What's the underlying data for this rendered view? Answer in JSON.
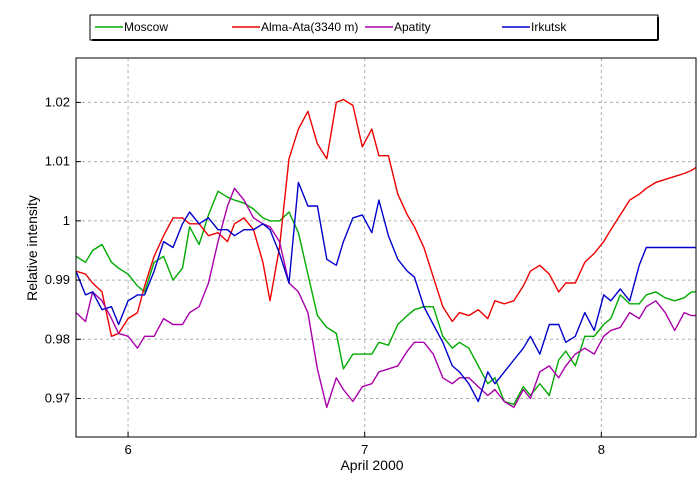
{
  "chart_data": {
    "type": "line",
    "title": "",
    "xlabel": "April 2000",
    "ylabel": "Relative intensity",
    "xlim": [
      5.78,
      8.4
    ],
    "ylim": [
      0.9635,
      1.0275
    ],
    "xticks": [
      6,
      7,
      8
    ],
    "xtick_labels": [
      "6",
      "7",
      "8"
    ],
    "yticks": [
      0.97,
      0.98,
      0.99,
      1.0,
      1.01,
      1.02
    ],
    "ytick_labels": [
      "0.97",
      "0.98",
      "0.99",
      "1",
      "1.01",
      "1.02"
    ],
    "grid": true,
    "legend_position": "top",
    "series": [
      {
        "name": "Moscow",
        "color": "#00aa00",
        "x": [
          5.78,
          5.82,
          5.85,
          5.89,
          5.93,
          5.96,
          6.0,
          6.04,
          6.07,
          6.11,
          6.15,
          6.19,
          6.23,
          6.26,
          6.3,
          6.34,
          6.38,
          6.42,
          6.45,
          6.49,
          6.53,
          6.57,
          6.6,
          6.64,
          6.68,
          6.72,
          6.76,
          6.8,
          6.84,
          6.88,
          6.91,
          6.95,
          6.99,
          7.03,
          7.06,
          7.1,
          7.14,
          7.18,
          7.21,
          7.25,
          7.29,
          7.33,
          7.37,
          7.4,
          7.44,
          7.48,
          7.52,
          7.55,
          7.59,
          7.63,
          7.67,
          7.7,
          7.74,
          7.78,
          7.82,
          7.85,
          7.89,
          7.93,
          7.97,
          8.01,
          8.04,
          8.08,
          8.12,
          8.16,
          8.19,
          8.23,
          8.27,
          8.31,
          8.35,
          8.38,
          8.4
        ],
        "y": [
          0.994,
          0.993,
          0.995,
          0.996,
          0.993,
          0.992,
          0.991,
          0.989,
          0.988,
          0.993,
          0.994,
          0.99,
          0.992,
          0.999,
          0.996,
          1.001,
          1.005,
          1.004,
          1.0035,
          1.003,
          1.002,
          1.0005,
          1.0,
          1.0,
          1.0015,
          0.998,
          0.991,
          0.984,
          0.982,
          0.981,
          0.975,
          0.9775,
          0.9775,
          0.9775,
          0.9795,
          0.979,
          0.9825,
          0.984,
          0.985,
          0.9855,
          0.9855,
          0.9805,
          0.9785,
          0.9795,
          0.9785,
          0.9755,
          0.9725,
          0.9735,
          0.9695,
          0.969,
          0.972,
          0.9705,
          0.9725,
          0.9705,
          0.9765,
          0.978,
          0.9755,
          0.9805,
          0.9805,
          0.9825,
          0.9835,
          0.9875,
          0.986,
          0.986,
          0.9875,
          0.988,
          0.987,
          0.9865,
          0.987,
          0.988,
          0.988
        ]
      },
      {
        "name": "Alma-Ata(3340 m)",
        "color": "#ee0000",
        "x": [
          5.78,
          5.82,
          5.85,
          5.89,
          5.93,
          5.96,
          6.0,
          6.04,
          6.07,
          6.11,
          6.15,
          6.19,
          6.23,
          6.26,
          6.3,
          6.34,
          6.38,
          6.42,
          6.45,
          6.49,
          6.53,
          6.57,
          6.6,
          6.64,
          6.68,
          6.72,
          6.76,
          6.8,
          6.84,
          6.88,
          6.91,
          6.95,
          6.99,
          7.03,
          7.06,
          7.1,
          7.14,
          7.18,
          7.21,
          7.25,
          7.29,
          7.33,
          7.37,
          7.4,
          7.44,
          7.48,
          7.52,
          7.55,
          7.59,
          7.63,
          7.67,
          7.7,
          7.74,
          7.78,
          7.82,
          7.85,
          7.89,
          7.93,
          7.97,
          8.01,
          8.04,
          8.08,
          8.12,
          8.16,
          8.19,
          8.23,
          8.27,
          8.31,
          8.35,
          8.38,
          8.4
        ],
        "y": [
          0.9915,
          0.991,
          0.9895,
          0.988,
          0.9805,
          0.981,
          0.9835,
          0.9845,
          0.989,
          0.994,
          0.9975,
          1.0005,
          1.0005,
          0.9995,
          0.9995,
          0.9975,
          0.998,
          0.9965,
          0.9995,
          1.0005,
          0.9985,
          0.993,
          0.9865,
          0.9955,
          1.0105,
          1.0155,
          1.0185,
          1.013,
          1.0105,
          1.02,
          1.0205,
          1.0195,
          1.0125,
          1.0155,
          1.011,
          1.011,
          1.0045,
          1.001,
          0.999,
          0.9955,
          0.9905,
          0.9855,
          0.983,
          0.9845,
          0.984,
          0.985,
          0.9835,
          0.9865,
          0.986,
          0.9865,
          0.989,
          0.9915,
          0.9925,
          0.991,
          0.988,
          0.9895,
          0.9895,
          0.993,
          0.9945,
          0.9965,
          0.9985,
          1.001,
          1.0035,
          1.0045,
          1.0055,
          1.0065,
          1.007,
          1.0075,
          1.008,
          1.0085,
          1.009
        ]
      },
      {
        "name": "Apatity",
        "color": "#aa00aa",
        "x": [
          5.78,
          5.82,
          5.85,
          5.89,
          5.93,
          5.96,
          6.0,
          6.04,
          6.07,
          6.11,
          6.15,
          6.19,
          6.23,
          6.26,
          6.3,
          6.34,
          6.38,
          6.42,
          6.45,
          6.49,
          6.53,
          6.57,
          6.6,
          6.64,
          6.68,
          6.72,
          6.76,
          6.8,
          6.84,
          6.88,
          6.91,
          6.95,
          6.99,
          7.03,
          7.06,
          7.1,
          7.14,
          7.18,
          7.21,
          7.25,
          7.29,
          7.33,
          7.37,
          7.4,
          7.44,
          7.48,
          7.52,
          7.55,
          7.59,
          7.63,
          7.67,
          7.7,
          7.74,
          7.78,
          7.82,
          7.85,
          7.89,
          7.93,
          7.97,
          8.01,
          8.04,
          8.08,
          8.12,
          8.16,
          8.19,
          8.23,
          8.27,
          8.31,
          8.35,
          8.38,
          8.4
        ],
        "y": [
          0.9845,
          0.983,
          0.988,
          0.9865,
          0.9835,
          0.981,
          0.9805,
          0.9785,
          0.9805,
          0.9805,
          0.9835,
          0.9825,
          0.9825,
          0.9845,
          0.9855,
          0.9895,
          0.9965,
          1.0025,
          1.0055,
          1.0035,
          1.0005,
          0.9995,
          0.999,
          0.9965,
          0.9895,
          0.988,
          0.9845,
          0.975,
          0.9685,
          0.9735,
          0.9715,
          0.9695,
          0.972,
          0.9725,
          0.9745,
          0.975,
          0.9755,
          0.978,
          0.9795,
          0.9795,
          0.9775,
          0.9735,
          0.9725,
          0.9735,
          0.9735,
          0.972,
          0.9705,
          0.9715,
          0.9695,
          0.9685,
          0.9715,
          0.97,
          0.9745,
          0.9755,
          0.9735,
          0.9755,
          0.9775,
          0.9785,
          0.9775,
          0.9805,
          0.9815,
          0.982,
          0.9845,
          0.9835,
          0.9855,
          0.9865,
          0.9845,
          0.9815,
          0.9845,
          0.984,
          0.984
        ]
      },
      {
        "name": "Irkutsk",
        "color": "#0000cc",
        "x": [
          5.78,
          5.82,
          5.85,
          5.89,
          5.93,
          5.96,
          6.0,
          6.04,
          6.07,
          6.11,
          6.15,
          6.19,
          6.23,
          6.26,
          6.3,
          6.34,
          6.38,
          6.42,
          6.45,
          6.49,
          6.53,
          6.57,
          6.6,
          6.64,
          6.68,
          6.72,
          6.76,
          6.8,
          6.84,
          6.88,
          6.91,
          6.95,
          6.99,
          7.03,
          7.06,
          7.1,
          7.14,
          7.18,
          7.21,
          7.25,
          7.29,
          7.33,
          7.37,
          7.4,
          7.44,
          7.48,
          7.52,
          7.55,
          7.59,
          7.63,
          7.67,
          7.7,
          7.74,
          7.78,
          7.82,
          7.85,
          7.89,
          7.93,
          7.97,
          8.01,
          8.04,
          8.08,
          8.12,
          8.16,
          8.19,
          8.23,
          8.27,
          8.31,
          8.35,
          8.38,
          8.4
        ],
        "y": [
          0.9915,
          0.9875,
          0.988,
          0.985,
          0.9855,
          0.9825,
          0.9865,
          0.9875,
          0.9875,
          0.9915,
          0.9965,
          0.9955,
          0.9995,
          1.0015,
          0.9995,
          1.0005,
          0.9985,
          0.9985,
          0.9975,
          0.9985,
          0.9985,
          0.9995,
          0.9985,
          0.9945,
          0.9895,
          1.0065,
          1.0025,
          1.0025,
          0.9935,
          0.9925,
          0.9965,
          1.0005,
          1.001,
          0.998,
          1.0035,
          0.9975,
          0.9935,
          0.9915,
          0.9905,
          0.9855,
          0.9825,
          0.9795,
          0.9755,
          0.9745,
          0.9725,
          0.9695,
          0.9745,
          0.9725,
          0.9745,
          0.9765,
          0.9785,
          0.9805,
          0.9775,
          0.9825,
          0.9825,
          0.9795,
          0.9805,
          0.9845,
          0.9815,
          0.9875,
          0.9865,
          0.9885,
          0.9865,
          0.9925,
          0.9955,
          0.9955,
          0.9955,
          0.9955,
          0.9955,
          0.9955,
          0.9955
        ]
      }
    ]
  }
}
